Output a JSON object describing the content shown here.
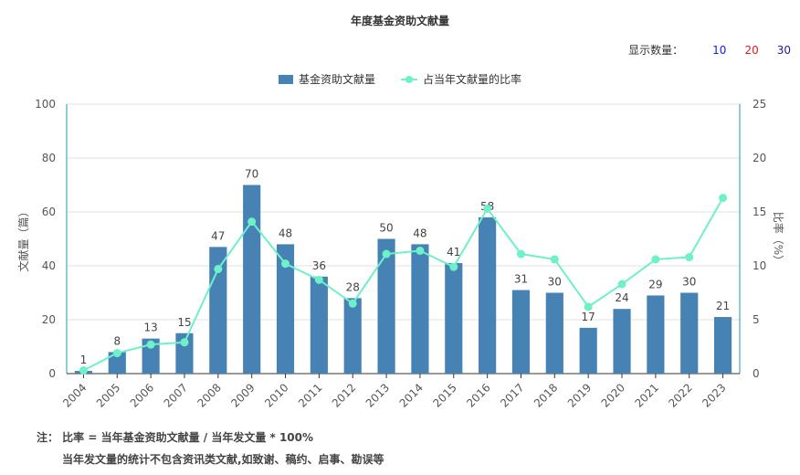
{
  "title": "年度基金资助文献量",
  "count_selector": {
    "label": "显示数量：",
    "options": [
      {
        "label": "10",
        "color": "#1a1adb"
      },
      {
        "label": "20",
        "color": "#d91a1a"
      },
      {
        "label": "30",
        "color": "#1a1a9e"
      }
    ]
  },
  "colors": {
    "bar": "#4682b4",
    "line": "#6ef0c8",
    "axis_right": "#1a9bb0"
  },
  "chart_data": {
    "type": "bar",
    "categories": [
      "2004",
      "2005",
      "2006",
      "2007",
      "2008",
      "2009",
      "2010",
      "2011",
      "2012",
      "2013",
      "2014",
      "2015",
      "2016",
      "2017",
      "2018",
      "2019",
      "2020",
      "2021",
      "2022",
      "2023"
    ],
    "series": [
      {
        "name": "基金资助文献量",
        "type": "bar",
        "axis": "left",
        "values": [
          1,
          8,
          13,
          15,
          47,
          70,
          48,
          36,
          28,
          50,
          48,
          41,
          58,
          31,
          30,
          17,
          24,
          29,
          30,
          21
        ]
      },
      {
        "name": "占当年文献量的比率",
        "type": "line",
        "axis": "right",
        "values": [
          0.3,
          1.9,
          2.7,
          2.9,
          9.7,
          14.1,
          10.2,
          8.7,
          6.5,
          11.1,
          11.4,
          9.9,
          15.3,
          11.1,
          10.6,
          6.2,
          8.3,
          10.6,
          10.8,
          16.3
        ]
      }
    ],
    "ylabel": "文献量（篇）",
    "ylabel_right": "比率（%）",
    "ylim": [
      0,
      100
    ],
    "yticks": [
      0,
      20,
      40,
      60,
      80,
      100
    ],
    "ylim_right": [
      0,
      25
    ],
    "yticks_right": [
      0,
      5,
      10,
      15,
      20,
      25
    ],
    "grid": true,
    "legend": "top-center"
  },
  "notes": {
    "line1": "注： 比率 = 当年基金资助文献量 / 当年发文量 * 100%",
    "line2": "当年发文量的统计不包含资讯类文献,如致谢、稿约、启事、勘误等"
  }
}
